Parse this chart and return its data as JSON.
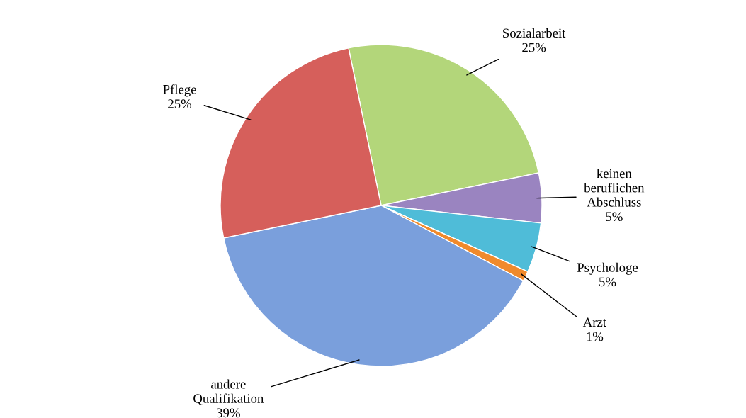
{
  "chart_data": {
    "type": "pie",
    "categories": [
      "Sozialarbeit",
      "keinen beruflichen Abschluss",
      "Psychologe",
      "Arzt",
      "andere Qualifikation",
      "Pflege"
    ],
    "values": [
      25,
      5,
      5,
      1,
      39,
      25
    ],
    "value_labels": [
      "25%",
      "5%",
      "5%",
      "1%",
      "39%",
      "25%"
    ],
    "colors": [
      "#b3d67a",
      "#9a84c0",
      "#4fbcd8",
      "#f08a2c",
      "#7a9fdc",
      "#d65f5b"
    ]
  }
}
